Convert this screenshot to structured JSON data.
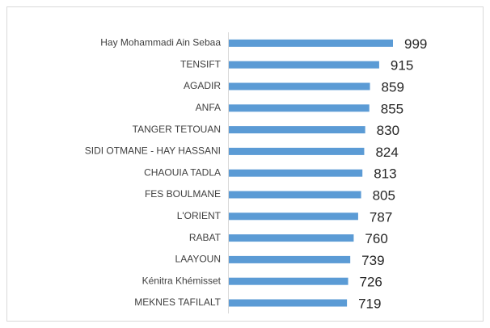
{
  "chart_data": {
    "type": "bar",
    "orientation": "horizontal",
    "categories": [
      "Hay Mohammadi Ain Sebaa",
      "TENSIFT",
      "AGADIR",
      "ANFA",
      "TANGER TETOUAN",
      "SIDI OTMANE - HAY HASSANI",
      "CHAOUIA TADLA",
      "FES BOULMANE",
      "L'ORIENT",
      "RABAT",
      "LAAYOUN",
      "Kénitra Khémisset",
      "MEKNES TAFILALT"
    ],
    "values": [
      999,
      915,
      859,
      855,
      830,
      824,
      813,
      805,
      787,
      760,
      739,
      726,
      719
    ],
    "color": "#5b9bd5"
  }
}
